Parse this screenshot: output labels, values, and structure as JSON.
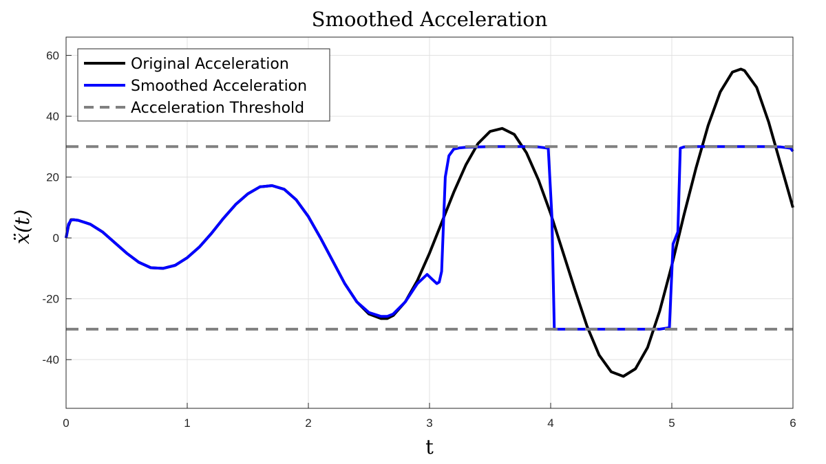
{
  "chart_data": {
    "type": "line",
    "title": "Smoothed Acceleration",
    "xlabel": "t",
    "ylabel": "ẍ(t)",
    "xlim": [
      0,
      6
    ],
    "ylim": [
      -56,
      66
    ],
    "xticks": [
      0,
      1,
      2,
      3,
      4,
      5,
      6
    ],
    "xtick_labels": [
      "0",
      "1",
      "2",
      "3",
      "4",
      "5",
      "6"
    ],
    "yticks": [
      -40,
      -20,
      0,
      20,
      40,
      60
    ],
    "ytick_labels": [
      "-40",
      "-20",
      "0",
      "20",
      "40",
      "60"
    ],
    "grid": true,
    "legend_position": "top-left",
    "series": [
      {
        "name": "Original Acceleration",
        "color": "#000000",
        "style": "solid",
        "x": [
          0,
          0.02,
          0.04,
          0.06,
          0.1,
          0.2,
          0.3,
          0.4,
          0.5,
          0.6,
          0.7,
          0.8,
          0.9,
          1.0,
          1.1,
          1.2,
          1.3,
          1.4,
          1.5,
          1.6,
          1.7,
          1.8,
          1.9,
          2.0,
          2.1,
          2.2,
          2.3,
          2.4,
          2.5,
          2.6,
          2.65,
          2.7,
          2.8,
          2.9,
          3.0,
          3.1,
          3.2,
          3.3,
          3.4,
          3.5,
          3.6,
          3.7,
          3.8,
          3.9,
          4.0,
          4.1,
          4.2,
          4.3,
          4.4,
          4.5,
          4.6,
          4.7,
          4.8,
          4.9,
          5.0,
          5.1,
          5.2,
          5.3,
          5.4,
          5.5,
          5.57,
          5.6,
          5.7,
          5.8,
          5.9,
          6.0
        ],
        "y": [
          0,
          4,
          6,
          6,
          5.8,
          4.5,
          2,
          -1.5,
          -5,
          -8,
          -9.8,
          -10,
          -9,
          -6.5,
          -3,
          1.5,
          6.5,
          11,
          14.5,
          16.8,
          17.2,
          16,
          12.5,
          7,
          0,
          -7.5,
          -15,
          -21,
          -25,
          -26.5,
          -26.5,
          -25.5,
          -21,
          -14,
          -5,
          5,
          15,
          24,
          31,
          35,
          36,
          34,
          28,
          19,
          8,
          -4.5,
          -17,
          -29,
          -38.5,
          -44,
          -45.5,
          -43,
          -36,
          -24,
          -9,
          7.5,
          23,
          37,
          48,
          54.5,
          55.5,
          55,
          49.5,
          38,
          24,
          10
        ]
      },
      {
        "name": "Smoothed Acceleration",
        "color": "#0000ff",
        "style": "solid",
        "x": [
          0,
          0.02,
          0.04,
          0.06,
          0.1,
          0.2,
          0.3,
          0.4,
          0.5,
          0.6,
          0.7,
          0.8,
          0.9,
          1.0,
          1.1,
          1.2,
          1.3,
          1.4,
          1.5,
          1.6,
          1.7,
          1.8,
          1.9,
          2.0,
          2.1,
          2.2,
          2.3,
          2.4,
          2.5,
          2.6,
          2.65,
          2.7,
          2.8,
          2.9,
          2.98,
          3.02,
          3.06,
          3.08,
          3.1,
          3.13,
          3.16,
          3.2,
          3.25,
          3.3,
          3.4,
          3.5,
          3.6,
          3.7,
          3.8,
          3.9,
          3.98,
          4.01,
          4.03,
          4.1,
          4.2,
          4.3,
          4.4,
          4.5,
          4.6,
          4.7,
          4.8,
          4.9,
          4.98,
          5.01,
          5.05,
          5.07,
          5.1,
          5.2,
          5.3,
          5.4,
          5.5,
          5.6,
          5.7,
          5.8,
          5.9,
          5.98,
          6.0
        ],
        "y": [
          0,
          4.5,
          5.8,
          6,
          5.8,
          4.5,
          2,
          -1.5,
          -5,
          -8,
          -9.8,
          -10,
          -9,
          -6.5,
          -3,
          1.5,
          6.5,
          11,
          14.5,
          16.8,
          17.2,
          16,
          12.5,
          7,
          0,
          -7.5,
          -15,
          -21,
          -24.5,
          -25.8,
          -25.8,
          -25,
          -21,
          -15,
          -12,
          -13.5,
          -15,
          -14.5,
          -11,
          20,
          27,
          29.2,
          29.6,
          29.8,
          29.9,
          30,
          30,
          30,
          30,
          29.9,
          29.5,
          7,
          -30,
          -30,
          -30,
          -30,
          -30,
          -30,
          -30,
          -30,
          -30,
          -30,
          -29.5,
          -2,
          2,
          29.5,
          29.9,
          30,
          30,
          30,
          30,
          30,
          30,
          30,
          29.9,
          29.5,
          28.5
        ]
      },
      {
        "name": "Acceleration Threshold",
        "color": "#808080",
        "style": "dashed",
        "lines": [
          {
            "x": [
              0,
              6
            ],
            "y": [
              30,
              30
            ]
          },
          {
            "x": [
              0,
              6
            ],
            "y": [
              -30,
              -30
            ]
          }
        ]
      }
    ]
  }
}
